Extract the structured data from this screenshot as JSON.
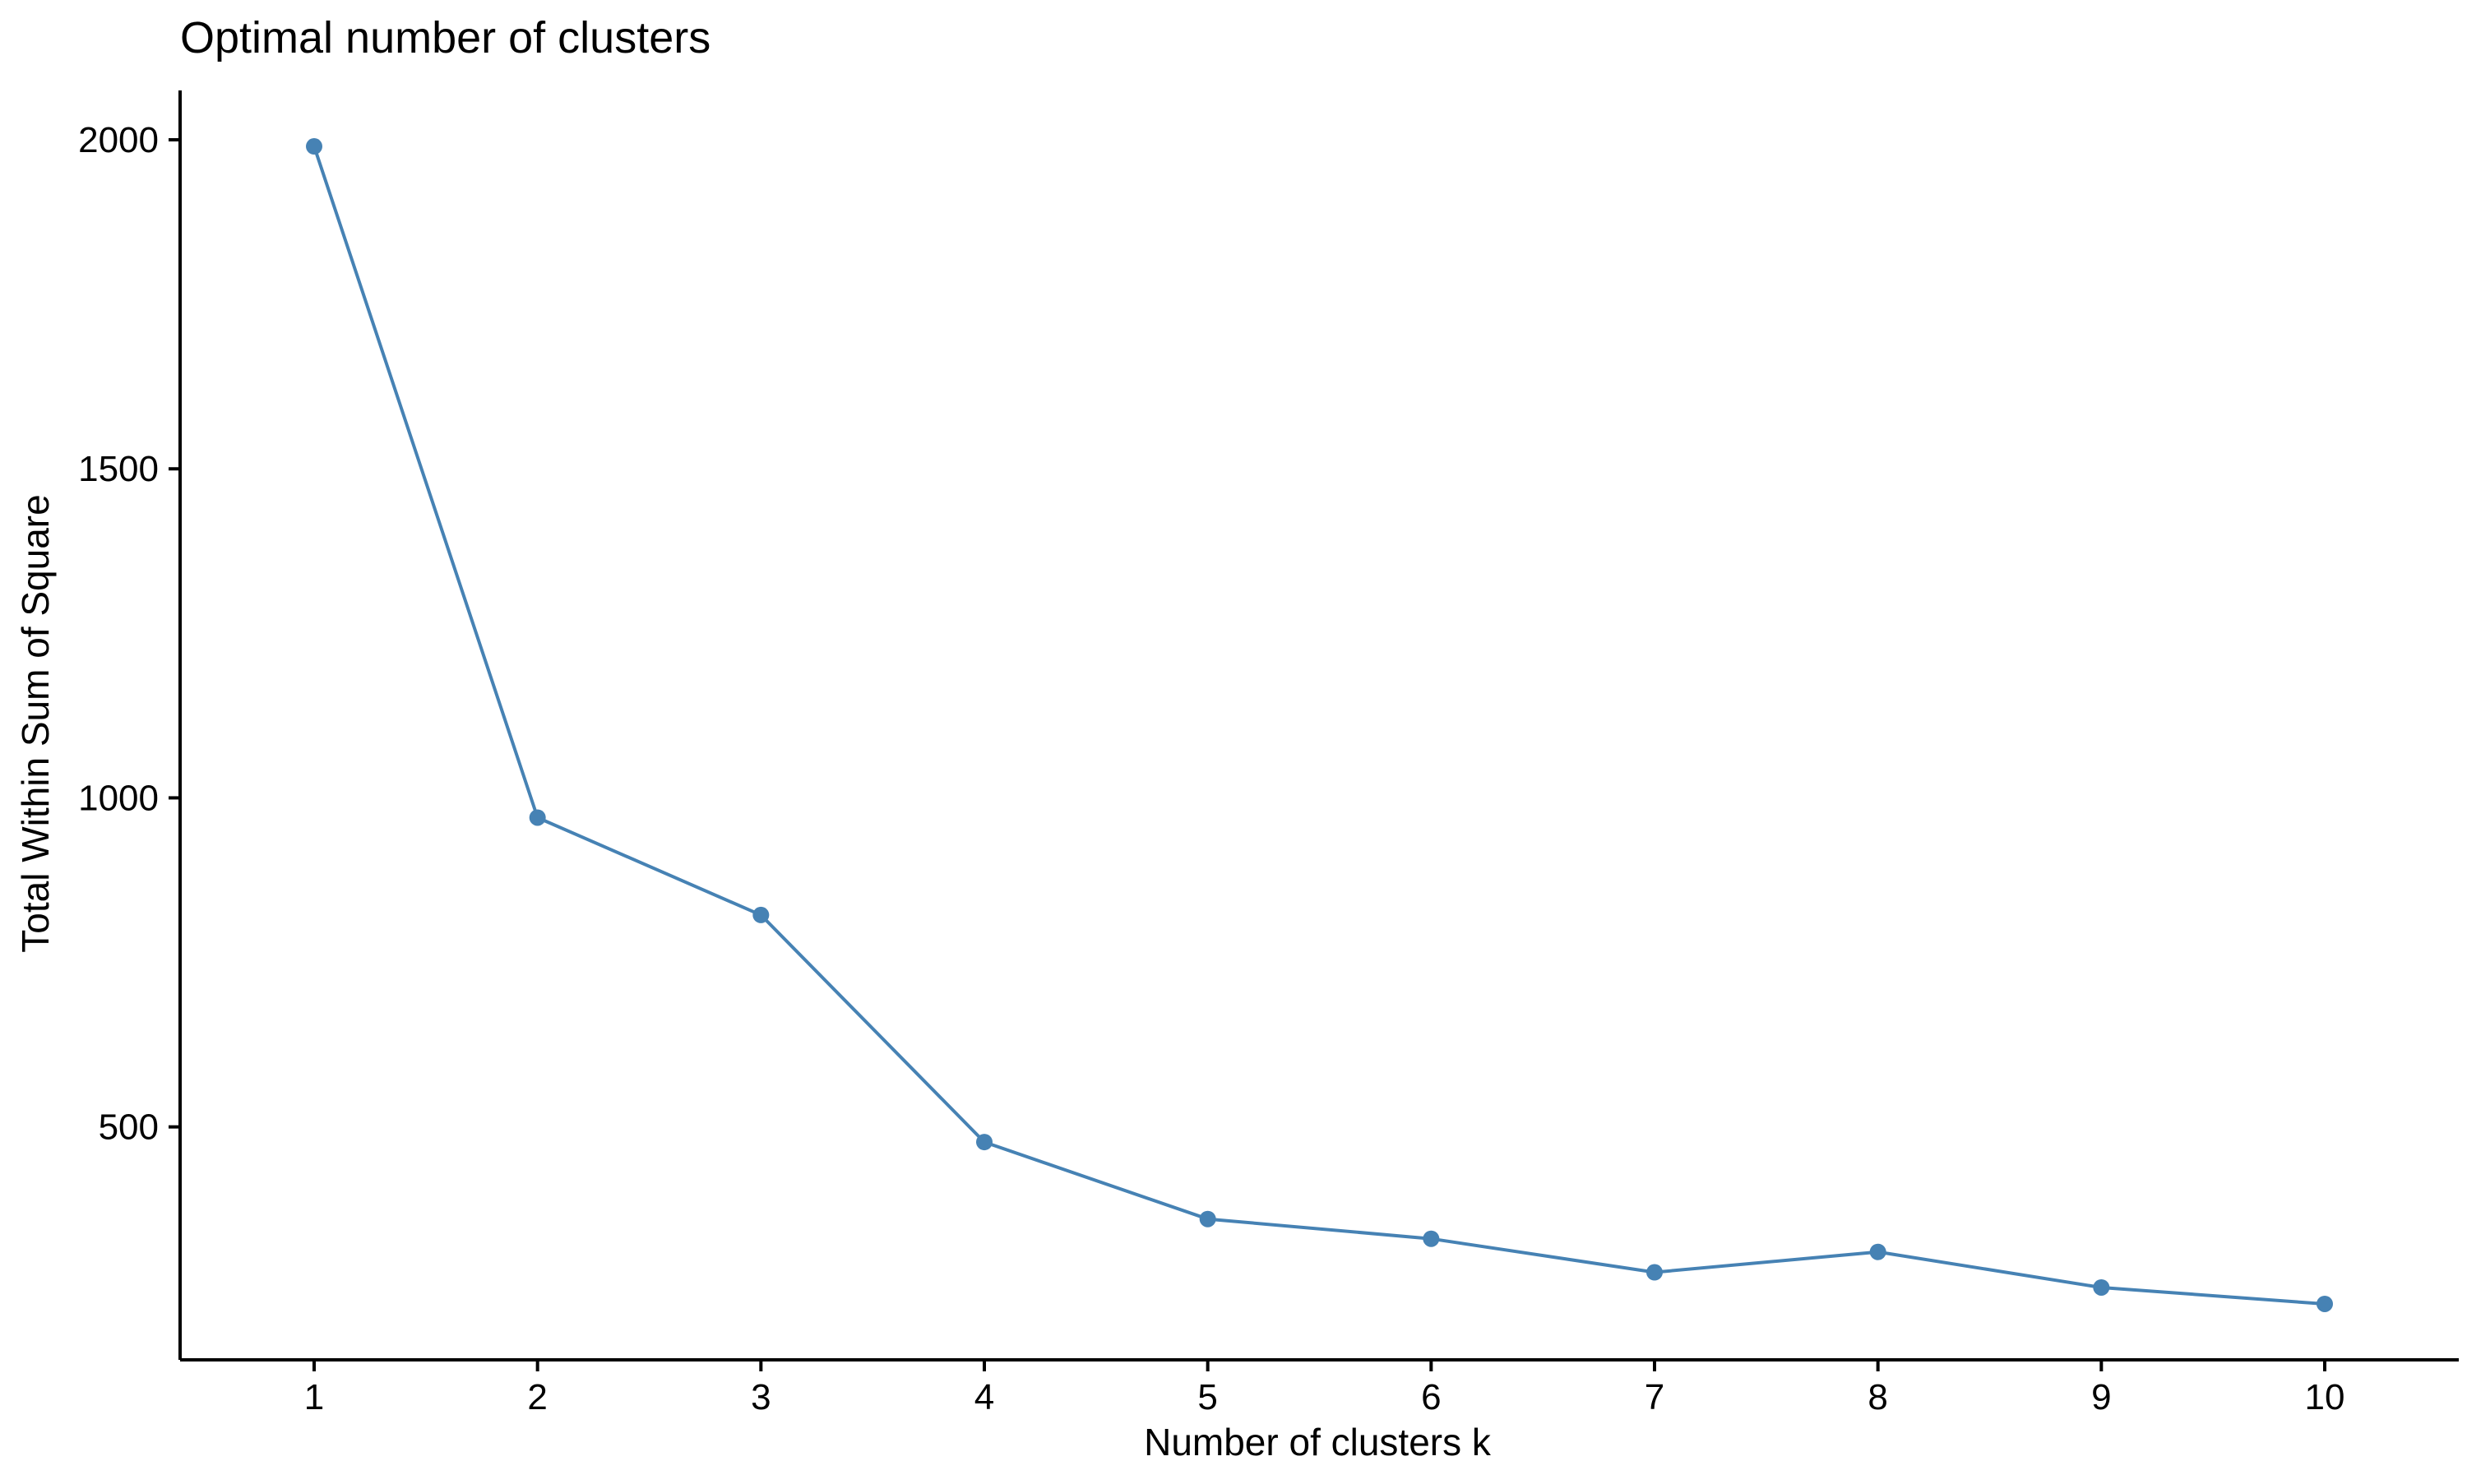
{
  "colors": {
    "series": "#4682B4",
    "axis": "#000000",
    "background": "#FFFFFF"
  },
  "chart_data": {
    "type": "line",
    "title": "Optimal number of clusters",
    "xlabel": "Number of clusters k",
    "ylabel": "Total Within Sum of Square",
    "x": [
      1,
      2,
      3,
      4,
      5,
      6,
      7,
      8,
      9,
      10
    ],
    "x_tick_labels": [
      "1",
      "2",
      "3",
      "4",
      "5",
      "6",
      "7",
      "8",
      "9",
      "10"
    ],
    "series": [
      {
        "values": [
          1990,
          970,
          822,
          477,
          360,
          330,
          279,
          310,
          256,
          231
        ]
      }
    ],
    "y_ticks": [
      500,
      1000,
      1500,
      2000
    ],
    "y_tick_labels": [
      "500",
      "1000",
      "1500",
      "2000"
    ],
    "xlim": [
      0.4,
      10.6
    ],
    "ylim": [
      146,
      2075
    ],
    "grid": false,
    "markers": true,
    "legend": "none"
  }
}
